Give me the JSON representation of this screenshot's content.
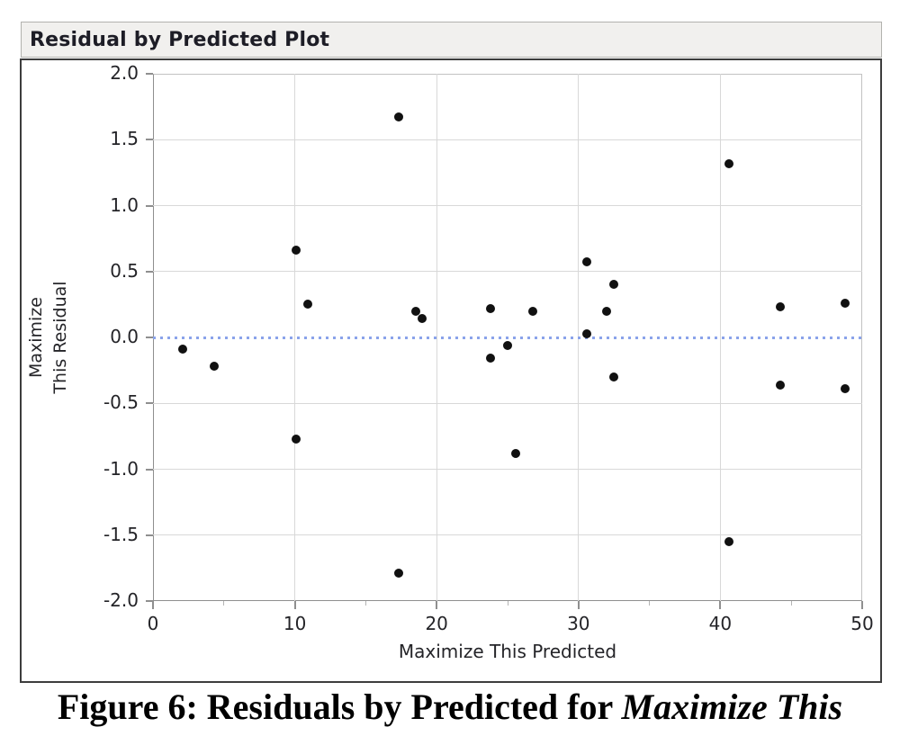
{
  "window": {
    "title": "Residual by Predicted Plot"
  },
  "caption": {
    "text_regular": "Figure 6: Residuals by Predicted for ",
    "text_italic": "Maximize This"
  },
  "colors": {
    "accent_blue": "#8aa3ea",
    "point_color": "#111111",
    "grid_color": "#d8d8d8",
    "frame_color": "#c2c2c2",
    "axis_color": "#8f8f8f",
    "title_bar_bg": "#f1f0ee",
    "title_bar_border": "#b2b2ae",
    "box_border": "#3d3d3d",
    "text_color": "#1d1d26"
  },
  "chart_data": {
    "type": "scatter",
    "title": "Residual by Predicted Plot",
    "xlabel": "Maximize This Predicted",
    "ylabel": "Maximize This Residual",
    "ylabel_lines": [
      "Maximize",
      "This Residual"
    ],
    "xlim": [
      0,
      50
    ],
    "ylim": [
      -2.0,
      2.0
    ],
    "x_major_ticks": [
      0,
      10,
      20,
      30,
      40,
      50
    ],
    "x_minor_ticks": [
      5,
      15,
      25,
      35,
      45
    ],
    "y_tick_labels": [
      "2.0",
      "1.5",
      "1.0",
      "0.5",
      "0.0",
      "-0.5",
      "-1.0",
      "-1.5",
      "-2.0"
    ],
    "x_gridlines": [
      10,
      20,
      30,
      40
    ],
    "y_gridlines": [
      1.5,
      1.0,
      0.5,
      -0.5,
      -1.0,
      -1.5
    ],
    "reference_line_y": 0.0,
    "grid": true,
    "legend": "none",
    "points": [
      [
        2.1,
        -0.09
      ],
      [
        4.3,
        -0.22
      ],
      [
        10.1,
        0.66
      ],
      [
        10.9,
        0.25
      ],
      [
        10.1,
        -0.77
      ],
      [
        17.3,
        1.67
      ],
      [
        17.3,
        -1.79
      ],
      [
        18.5,
        0.2
      ],
      [
        19.0,
        0.14
      ],
      [
        23.8,
        0.22
      ],
      [
        23.8,
        -0.16
      ],
      [
        25.0,
        -0.06
      ],
      [
        25.6,
        -0.88
      ],
      [
        26.8,
        0.2
      ],
      [
        30.6,
        0.57
      ],
      [
        30.6,
        0.03
      ],
      [
        32.0,
        0.2
      ],
      [
        32.5,
        0.4
      ],
      [
        32.5,
        -0.3
      ],
      [
        40.6,
        1.32
      ],
      [
        40.6,
        -1.55
      ],
      [
        44.2,
        0.23
      ],
      [
        44.2,
        -0.36
      ],
      [
        48.8,
        0.26
      ],
      [
        48.8,
        -0.39
      ]
    ]
  }
}
